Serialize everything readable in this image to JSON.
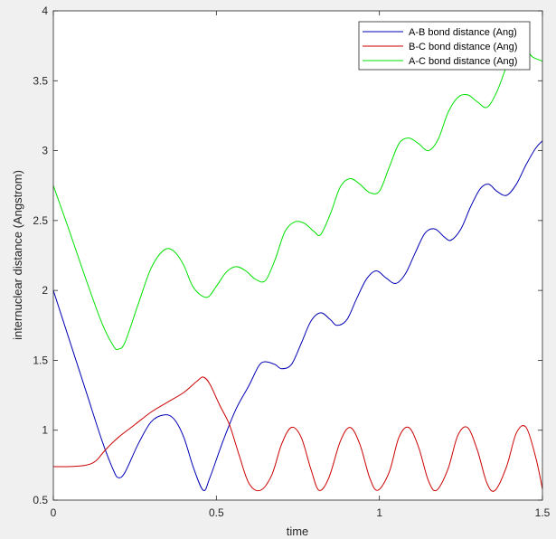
{
  "chart_data": {
    "type": "line",
    "title": "",
    "xlabel": "time",
    "ylabel": "internuclear distance (Angstrom)",
    "xlim": [
      0,
      1.5
    ],
    "ylim": [
      0.5,
      4
    ],
    "x_ticks": [
      0,
      0.5,
      1,
      1.5
    ],
    "x_tick_labels": [
      "0",
      "0.5",
      "1",
      "1.5"
    ],
    "y_ticks": [
      0.5,
      1,
      1.5,
      2,
      2.5,
      3,
      3.5,
      4
    ],
    "y_tick_labels": [
      "0.5",
      "1",
      "1.5",
      "2",
      "2.5",
      "3",
      "3.5",
      "4"
    ],
    "grid": false,
    "legend_position": "top-right",
    "series": [
      {
        "name": "A-B bond distance (Ang)",
        "color": "#0000b4",
        "points": [
          [
            0,
            2.0
          ],
          [
            0.05,
            1.64
          ],
          [
            0.1,
            1.28
          ],
          [
            0.15,
            0.92
          ],
          [
            0.185,
            0.71
          ],
          [
            0.2,
            0.66
          ],
          [
            0.22,
            0.7
          ],
          [
            0.26,
            0.9
          ],
          [
            0.3,
            1.06
          ],
          [
            0.34,
            1.11
          ],
          [
            0.37,
            1.08
          ],
          [
            0.4,
            0.95
          ],
          [
            0.43,
            0.73
          ],
          [
            0.46,
            0.57
          ],
          [
            0.48,
            0.66
          ],
          [
            0.52,
            0.92
          ],
          [
            0.56,
            1.15
          ],
          [
            0.6,
            1.32
          ],
          [
            0.63,
            1.46
          ],
          [
            0.65,
            1.49
          ],
          [
            0.68,
            1.47
          ],
          [
            0.7,
            1.44
          ],
          [
            0.73,
            1.47
          ],
          [
            0.76,
            1.62
          ],
          [
            0.79,
            1.78
          ],
          [
            0.82,
            1.84
          ],
          [
            0.85,
            1.79
          ],
          [
            0.87,
            1.75
          ],
          [
            0.9,
            1.79
          ],
          [
            0.93,
            1.94
          ],
          [
            0.96,
            2.08
          ],
          [
            0.99,
            2.14
          ],
          [
            1.02,
            2.09
          ],
          [
            1.05,
            2.05
          ],
          [
            1.08,
            2.12
          ],
          [
            1.11,
            2.27
          ],
          [
            1.14,
            2.41
          ],
          [
            1.17,
            2.44
          ],
          [
            1.2,
            2.38
          ],
          [
            1.22,
            2.36
          ],
          [
            1.25,
            2.44
          ],
          [
            1.28,
            2.6
          ],
          [
            1.31,
            2.73
          ],
          [
            1.335,
            2.76
          ],
          [
            1.36,
            2.71
          ],
          [
            1.39,
            2.68
          ],
          [
            1.42,
            2.76
          ],
          [
            1.45,
            2.9
          ],
          [
            1.48,
            3.02
          ],
          [
            1.5,
            3.07
          ]
        ]
      },
      {
        "name": "B-C bond distance (Ang)",
        "color": "#cc0000",
        "points": [
          [
            0,
            0.74
          ],
          [
            0.05,
            0.74
          ],
          [
            0.1,
            0.75
          ],
          [
            0.13,
            0.78
          ],
          [
            0.16,
            0.86
          ],
          [
            0.2,
            0.95
          ],
          [
            0.25,
            1.04
          ],
          [
            0.3,
            1.13
          ],
          [
            0.35,
            1.2
          ],
          [
            0.4,
            1.27
          ],
          [
            0.44,
            1.35
          ],
          [
            0.46,
            1.38
          ],
          [
            0.48,
            1.33
          ],
          [
            0.51,
            1.18
          ],
          [
            0.54,
            1.04
          ],
          [
            0.57,
            0.82
          ],
          [
            0.6,
            0.62
          ],
          [
            0.635,
            0.57
          ],
          [
            0.67,
            0.68
          ],
          [
            0.7,
            0.9
          ],
          [
            0.73,
            1.02
          ],
          [
            0.76,
            0.95
          ],
          [
            0.79,
            0.72
          ],
          [
            0.815,
            0.57
          ],
          [
            0.845,
            0.66
          ],
          [
            0.88,
            0.92
          ],
          [
            0.91,
            1.02
          ],
          [
            0.94,
            0.9
          ],
          [
            0.97,
            0.66
          ],
          [
            0.995,
            0.57
          ],
          [
            1.03,
            0.7
          ],
          [
            1.06,
            0.95
          ],
          [
            1.09,
            1.02
          ],
          [
            1.12,
            0.88
          ],
          [
            1.15,
            0.64
          ],
          [
            1.175,
            0.57
          ],
          [
            1.21,
            0.72
          ],
          [
            1.24,
            0.96
          ],
          [
            1.27,
            1.02
          ],
          [
            1.3,
            0.86
          ],
          [
            1.33,
            0.62
          ],
          [
            1.355,
            0.57
          ],
          [
            1.39,
            0.74
          ],
          [
            1.42,
            0.98
          ],
          [
            1.45,
            1.02
          ],
          [
            1.48,
            0.8
          ],
          [
            1.5,
            0.58
          ]
        ]
      },
      {
        "name": "A-C bond distance (Ang)",
        "color": "#00e000",
        "points": [
          [
            0,
            2.75
          ],
          [
            0.05,
            2.42
          ],
          [
            0.1,
            2.08
          ],
          [
            0.15,
            1.76
          ],
          [
            0.185,
            1.6
          ],
          [
            0.2,
            1.58
          ],
          [
            0.22,
            1.63
          ],
          [
            0.26,
            1.9
          ],
          [
            0.3,
            2.16
          ],
          [
            0.34,
            2.29
          ],
          [
            0.37,
            2.28
          ],
          [
            0.4,
            2.18
          ],
          [
            0.43,
            2.02
          ],
          [
            0.47,
            1.95
          ],
          [
            0.5,
            2.03
          ],
          [
            0.53,
            2.13
          ],
          [
            0.56,
            2.17
          ],
          [
            0.59,
            2.14
          ],
          [
            0.62,
            2.08
          ],
          [
            0.65,
            2.07
          ],
          [
            0.68,
            2.22
          ],
          [
            0.71,
            2.42
          ],
          [
            0.74,
            2.49
          ],
          [
            0.77,
            2.48
          ],
          [
            0.8,
            2.42
          ],
          [
            0.82,
            2.4
          ],
          [
            0.85,
            2.55
          ],
          [
            0.88,
            2.74
          ],
          [
            0.91,
            2.8
          ],
          [
            0.94,
            2.76
          ],
          [
            0.97,
            2.7
          ],
          [
            1.0,
            2.71
          ],
          [
            1.03,
            2.88
          ],
          [
            1.06,
            3.05
          ],
          [
            1.09,
            3.09
          ],
          [
            1.12,
            3.05
          ],
          [
            1.15,
            3.0
          ],
          [
            1.18,
            3.08
          ],
          [
            1.21,
            3.27
          ],
          [
            1.24,
            3.38
          ],
          [
            1.27,
            3.4
          ],
          [
            1.3,
            3.35
          ],
          [
            1.33,
            3.31
          ],
          [
            1.36,
            3.42
          ],
          [
            1.39,
            3.6
          ],
          [
            1.42,
            3.72
          ],
          [
            1.45,
            3.72
          ],
          [
            1.47,
            3.67
          ],
          [
            1.5,
            3.64
          ]
        ]
      }
    ]
  }
}
